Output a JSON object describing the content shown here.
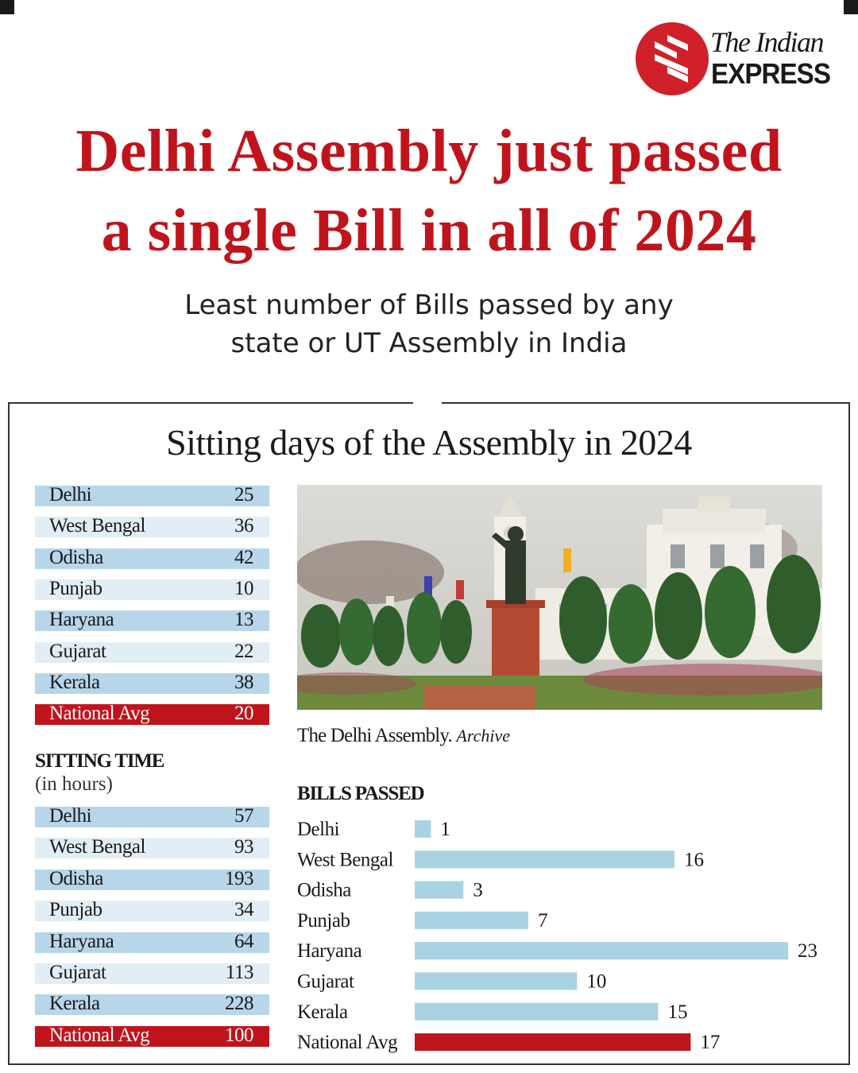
{
  "brand": {
    "line1": "The Indian",
    "line2": "EXPRESS"
  },
  "headline": {
    "line1": "Delhi Assembly just passed",
    "line2": "a single Bill in all of 2024"
  },
  "subhead": {
    "line1": "Least number of Bills passed by any",
    "line2": "state or UT Assembly in India"
  },
  "colors": {
    "accent": "#c0141c",
    "bar": "#a9d3e2",
    "row_light": "#e2eef6",
    "row_dark": "#b8d6ea"
  },
  "photo": {
    "caption": "The Delhi Assembly.",
    "caption_source": "Archive"
  },
  "chart_data": [
    {
      "type": "table",
      "title": "Sitting days of the Assembly in 2024",
      "rows": [
        {
          "name": "Delhi",
          "value": 25
        },
        {
          "name": "West Bengal",
          "value": 36
        },
        {
          "name": "Odisha",
          "value": 42
        },
        {
          "name": "Punjab",
          "value": 10
        },
        {
          "name": "Haryana",
          "value": 13
        },
        {
          "name": "Gujarat",
          "value": 22
        },
        {
          "name": "Kerala",
          "value": 38
        },
        {
          "name": "National Avg",
          "value": 20,
          "highlight": true
        }
      ]
    },
    {
      "type": "table",
      "title": "SITTING TIME",
      "subtitle": "(in hours)",
      "rows": [
        {
          "name": "Delhi",
          "value": 57
        },
        {
          "name": "West Bengal",
          "value": 93
        },
        {
          "name": "Odisha",
          "value": 193
        },
        {
          "name": "Punjab",
          "value": 34
        },
        {
          "name": "Haryana",
          "value": 64
        },
        {
          "name": "Gujarat",
          "value": 113
        },
        {
          "name": "Kerala",
          "value": 228
        },
        {
          "name": "National Avg",
          "value": 100,
          "highlight": true
        }
      ]
    },
    {
      "type": "bar",
      "orientation": "horizontal",
      "title": "BILLS PASSED",
      "categories": [
        "Delhi",
        "West Bengal",
        "Odisha",
        "Punjab",
        "Haryana",
        "Gujarat",
        "Kerala",
        "National Avg"
      ],
      "values": [
        1,
        16,
        3,
        7,
        23,
        10,
        15,
        17
      ],
      "highlight": "National Avg",
      "xlim": [
        0,
        23
      ]
    }
  ]
}
